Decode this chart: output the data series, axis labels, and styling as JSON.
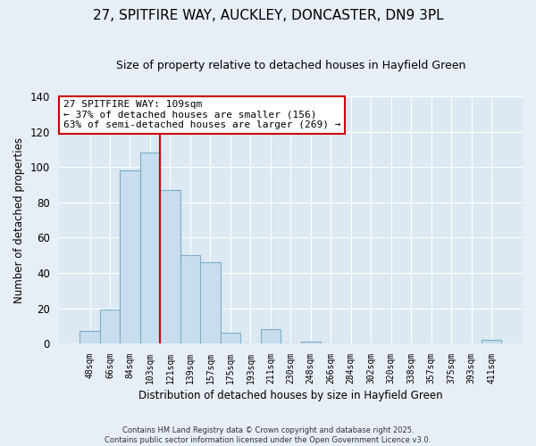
{
  "title": "27, SPITFIRE WAY, AUCKLEY, DONCASTER, DN9 3PL",
  "subtitle": "Size of property relative to detached houses in Hayfield Green",
  "xlabel": "Distribution of detached houses by size in Hayfield Green",
  "ylabel": "Number of detached properties",
  "categories": [
    "48sqm",
    "66sqm",
    "84sqm",
    "103sqm",
    "121sqm",
    "139sqm",
    "157sqm",
    "175sqm",
    "193sqm",
    "211sqm",
    "230sqm",
    "248sqm",
    "266sqm",
    "284sqm",
    "302sqm",
    "320sqm",
    "338sqm",
    "357sqm",
    "375sqm",
    "393sqm",
    "411sqm"
  ],
  "values": [
    7,
    19,
    98,
    108,
    87,
    50,
    46,
    6,
    0,
    8,
    0,
    1,
    0,
    0,
    0,
    0,
    0,
    0,
    0,
    0,
    2
  ],
  "bar_color": "#c8ddef",
  "bar_edge_color": "#7aafc8",
  "ylim": [
    0,
    140
  ],
  "yticks": [
    0,
    20,
    40,
    60,
    80,
    100,
    120,
    140
  ],
  "annotation_title": "27 SPITFIRE WAY: 109sqm",
  "annotation_line1": "← 37% of detached houses are smaller (156)",
  "annotation_line2": "63% of semi-detached houses are larger (269) →",
  "vline_x": 3.5,
  "vline_color": "#cc0000",
  "background_color": "#e8eef5",
  "plot_bg_color": "#dce8f2",
  "grid_color": "#ffffff",
  "footer_line1": "Contains HM Land Registry data © Crown copyright and database right 2025.",
  "footer_line2": "Contains public sector information licensed under the Open Government Licence v3.0."
}
